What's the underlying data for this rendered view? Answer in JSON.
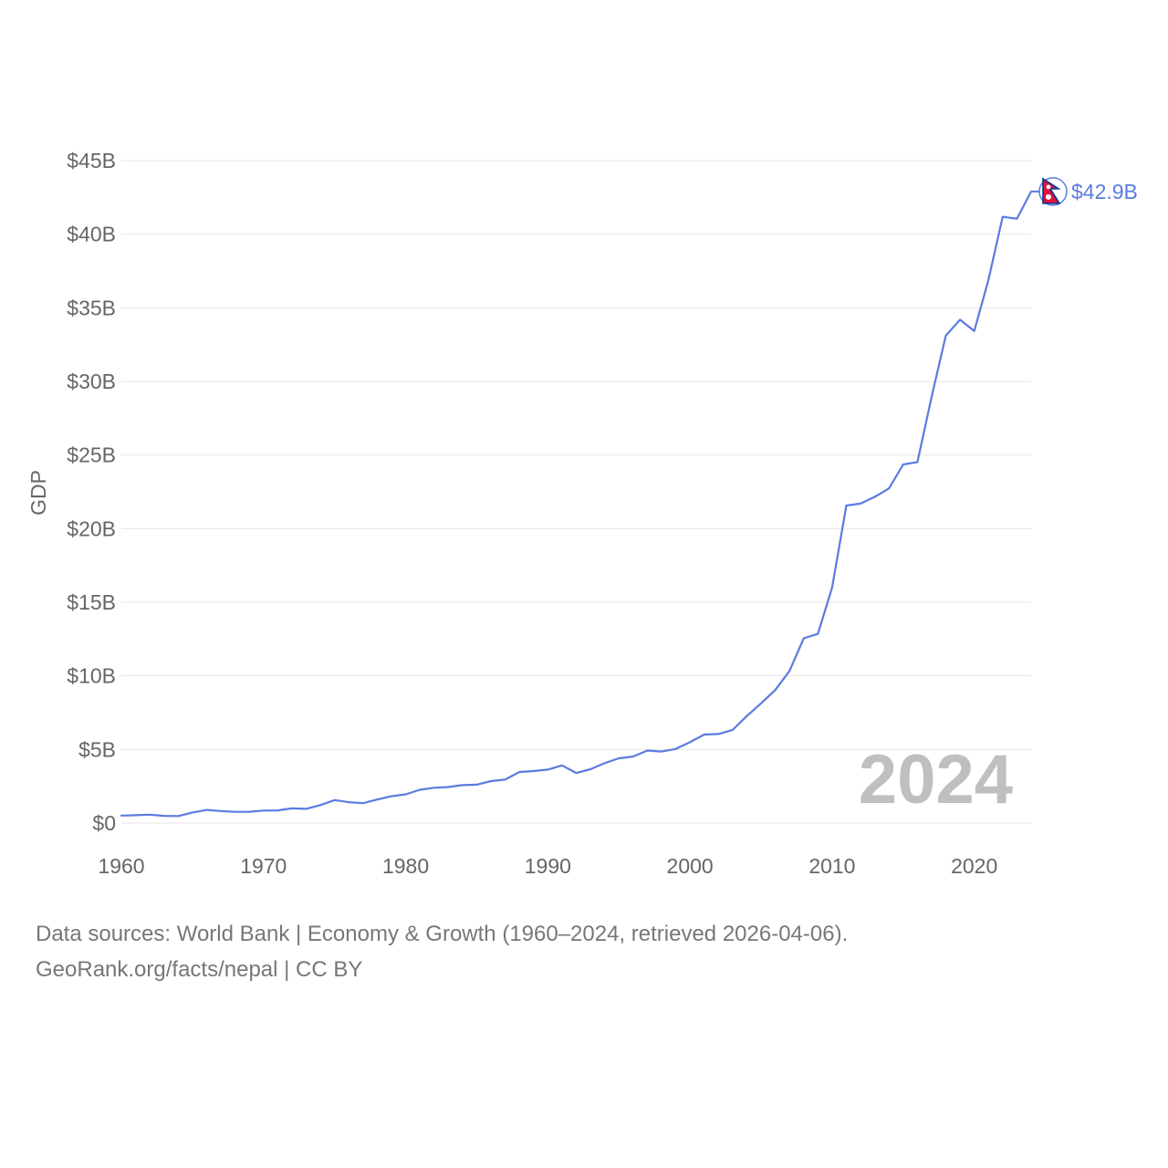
{
  "chart_data": {
    "type": "line",
    "ylabel": "GDP",
    "y_ticks": [
      "$0",
      "$5B",
      "$10B",
      "$15B",
      "$20B",
      "$25B",
      "$30B",
      "$35B",
      "$40B",
      "$45B"
    ],
    "y_tick_values": [
      0,
      5,
      10,
      15,
      20,
      25,
      30,
      35,
      40,
      45
    ],
    "x_ticks": [
      "1960",
      "1970",
      "1980",
      "1990",
      "2000",
      "2010",
      "2020"
    ],
    "x_tick_values": [
      1960,
      1970,
      1980,
      1990,
      2000,
      2010,
      2020
    ],
    "xlim": [
      1960,
      2024
    ],
    "ylim": [
      0,
      45
    ],
    "unit": "billion USD",
    "series": [
      {
        "name": "Nepal GDP",
        "color": "#5b7be0",
        "x": [
          1960,
          1961,
          1962,
          1963,
          1964,
          1965,
          1966,
          1967,
          1968,
          1969,
          1970,
          1971,
          1972,
          1973,
          1974,
          1975,
          1976,
          1977,
          1978,
          1979,
          1980,
          1981,
          1982,
          1983,
          1984,
          1985,
          1986,
          1987,
          1988,
          1989,
          1990,
          1991,
          1992,
          1993,
          1994,
          1995,
          1996,
          1997,
          1998,
          1999,
          2000,
          2001,
          2002,
          2003,
          2004,
          2005,
          2006,
          2007,
          2008,
          2009,
          2010,
          2011,
          2012,
          2013,
          2014,
          2015,
          2016,
          2017,
          2018,
          2019,
          2020,
          2021,
          2022,
          2023,
          2024
        ],
        "values": [
          0.51,
          0.53,
          0.57,
          0.49,
          0.48,
          0.72,
          0.89,
          0.82,
          0.76,
          0.77,
          0.85,
          0.86,
          1.0,
          0.97,
          1.22,
          1.56,
          1.42,
          1.35,
          1.6,
          1.82,
          1.95,
          2.26,
          2.4,
          2.45,
          2.58,
          2.61,
          2.85,
          2.95,
          3.47,
          3.53,
          3.63,
          3.92,
          3.4,
          3.66,
          4.07,
          4.4,
          4.52,
          4.93,
          4.86,
          5.03,
          5.49,
          6.01,
          6.05,
          6.33,
          7.27,
          8.13,
          9.04,
          10.33,
          12.55,
          12.85,
          16.0,
          21.57,
          21.7,
          22.16,
          22.73,
          24.36,
          24.52,
          28.97,
          33.11,
          34.19,
          33.43,
          36.92,
          41.18,
          41.05,
          42.9
        ]
      }
    ],
    "end_label": "$42.9B",
    "year_watermark": "2024",
    "flag": "nepal-flag-icon"
  },
  "footer": {
    "line1": "Data sources: World Bank | Economy & Growth (1960–2024, retrieved 2026-04-06).",
    "line2": "GeoRank.org/facts/nepal | CC BY"
  },
  "colors": {
    "line": "#5b7be0",
    "grid": "#e6e6e6",
    "tick_text": "#666666",
    "watermark": "#bfbfbf",
    "flag_red": "#dc143c",
    "flag_blue": "#003893"
  }
}
